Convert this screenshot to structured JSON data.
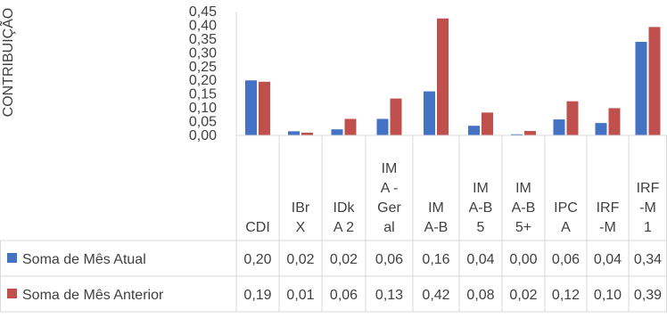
{
  "chart_data": {
    "type": "bar",
    "ylabel": "CONTRIBUIÇÃO",
    "ylim": [
      0,
      0.45
    ],
    "yticks": [
      "0,00",
      "0,05",
      "0,10",
      "0,15",
      "0,20",
      "0,25",
      "0,30",
      "0,35",
      "0,40",
      "0,45"
    ],
    "grid": false,
    "legend": "data-table",
    "categories": [
      "CDI",
      "IBrX",
      "IDkA 2",
      "IMA - Geral",
      "IMA-B",
      "IMA-B 5",
      "IMA-B 5+",
      "IPCA",
      "IRF-M",
      "IRF-M 1"
    ],
    "category_label_lines": [
      [
        "CDI"
      ],
      [
        "IBr",
        "X"
      ],
      [
        "IDk",
        "A 2"
      ],
      [
        "IM",
        "A -",
        "Ger",
        "al"
      ],
      [
        "IM",
        "A-B"
      ],
      [
        "IM",
        "A-B",
        "5"
      ],
      [
        "IM",
        "A-B",
        "5+"
      ],
      [
        "IPC",
        "A"
      ],
      [
        "IRF",
        "-M"
      ],
      [
        "IRF",
        "-M",
        "1"
      ]
    ],
    "series": [
      {
        "name": "Soma de Mês Atual",
        "color": "#4472C4",
        "values": [
          0.2,
          0.015,
          0.022,
          0.06,
          0.16,
          0.035,
          0.004,
          0.058,
          0.045,
          0.34
        ],
        "labels": [
          "0,20",
          "0,02",
          "0,02",
          "0,06",
          "0,16",
          "0,04",
          "0,00",
          "0,06",
          "0,04",
          "0,34"
        ]
      },
      {
        "name": "Soma de Mês Anterior",
        "color": "#C0504D",
        "values": [
          0.195,
          0.01,
          0.06,
          0.134,
          0.425,
          0.083,
          0.016,
          0.124,
          0.099,
          0.394
        ],
        "labels": [
          "0,19",
          "0,01",
          "0,06",
          "0,13",
          "0,42",
          "0,08",
          "0,02",
          "0,12",
          "0,10",
          "0,39"
        ]
      }
    ]
  }
}
